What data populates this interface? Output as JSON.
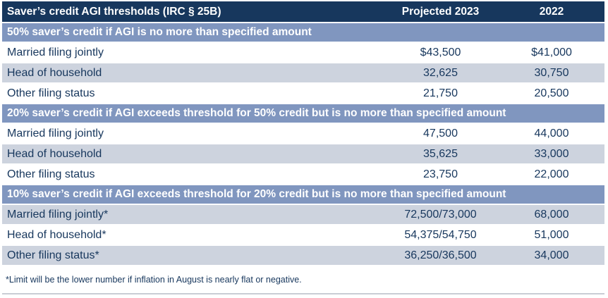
{
  "header": {
    "title": "Saver’s credit AGI thresholds (IRC § 25B)",
    "col_projected_2023": "Projected 2023",
    "col_2022": "2022"
  },
  "sections": [
    {
      "heading": "50% saver’s credit if AGI is no more than specified amount",
      "rows": [
        {
          "label": "Married filing jointly",
          "projected_2023": "$43,500",
          "y2022": "$41,000",
          "shaded": false
        },
        {
          "label": "Head of household",
          "projected_2023": "32,625",
          "y2022": "30,750",
          "shaded": true
        },
        {
          "label": "Other filing status",
          "projected_2023": "21,750",
          "y2022": "20,500",
          "shaded": false
        }
      ]
    },
    {
      "heading": "20% saver’s credit if AGI exceeds threshold for 50% credit but is no more than specified amount",
      "rows": [
        {
          "label": "Married filing jointly",
          "projected_2023": "47,500",
          "y2022": "44,000",
          "shaded": false
        },
        {
          "label": "Head of household",
          "projected_2023": "35,625",
          "y2022": "33,000",
          "shaded": true
        },
        {
          "label": "Other filing status",
          "projected_2023": "23,750",
          "y2022": "22,000",
          "shaded": false
        }
      ]
    },
    {
      "heading": "10% saver’s credit if AGI exceeds threshold for 20% credit but is no more than specified amount",
      "rows": [
        {
          "label": "Married filing jointly*",
          "projected_2023": "72,500/73,000",
          "y2022": "68,000",
          "shaded": true
        },
        {
          "label": "Head of household*",
          "projected_2023": "54,375/54,750",
          "y2022": "51,000",
          "shaded": false
        },
        {
          "label": "Other filing status*",
          "projected_2023": "36,250/36,500",
          "y2022": "34,000",
          "shaded": true
        }
      ]
    }
  ],
  "footnote": "*Limit will be the lower number if inflation in August is nearly flat or negative.",
  "colors": {
    "header_bg": "#17375D",
    "section_bg": "#8096BF",
    "band_bg": "#CDD3DE",
    "text": "#17375D",
    "rule": "#C9CDD5"
  }
}
